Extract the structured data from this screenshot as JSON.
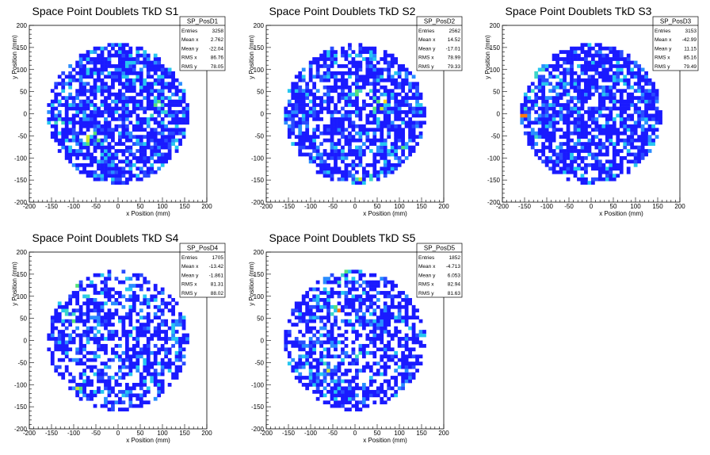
{
  "chart_data": [
    {
      "type": "heatmap",
      "title": "Space Point Doublets TkD S1",
      "xlabel": "x Position (mm)",
      "ylabel": "y Position (mm)",
      "xlim": [
        -200,
        200
      ],
      "ylim": [
        -200,
        200
      ],
      "xticks": [
        -200,
        -150,
        -100,
        -50,
        0,
        50,
        100,
        150,
        200
      ],
      "yticks": [
        -200,
        -150,
        -100,
        -50,
        0,
        50,
        100,
        150,
        200
      ],
      "stats": {
        "name": "SP_PosD1",
        "rows": [
          [
            "Entries",
            "3258"
          ],
          [
            "Mean x",
            "2.762"
          ],
          [
            "Mean y",
            "-22.04"
          ],
          [
            "RMS x",
            "86.76"
          ],
          [
            "RMS y",
            "78.05"
          ]
        ]
      },
      "seed": 11,
      "occupancy": 0.74,
      "hot": [
        [
          -140,
          -20
        ],
        [
          90,
          15
        ],
        [
          -60,
          -60
        ]
      ]
    },
    {
      "type": "heatmap",
      "title": "Space Point Doublets TkD S2",
      "xlabel": "x Position (mm)",
      "ylabel": "y Position (mm)",
      "xlim": [
        -200,
        200
      ],
      "ylim": [
        -200,
        200
      ],
      "xticks": [
        -200,
        -150,
        -100,
        -50,
        0,
        50,
        100,
        150,
        200
      ],
      "yticks": [
        -200,
        -150,
        -100,
        -50,
        0,
        50,
        100,
        150,
        200
      ],
      "stats": {
        "name": "SP_PosD2",
        "rows": [
          [
            "Entries",
            "2562"
          ],
          [
            "Mean x",
            "14.52"
          ],
          [
            "Mean y",
            "-17.01"
          ],
          [
            "RMS x",
            "78.99"
          ],
          [
            "RMS y",
            "79.33"
          ]
        ]
      },
      "seed": 23,
      "occupancy": 0.68,
      "hot": [
        [
          20,
          50
        ],
        [
          60,
          20
        ],
        [
          20,
          -150
        ],
        [
          120,
          -80
        ]
      ]
    },
    {
      "type": "heatmap",
      "title": "Space Point Doublets TkD S3",
      "xlabel": "x Position (mm)",
      "ylabel": "y Position (mm)",
      "xlim": [
        -200,
        200
      ],
      "ylim": [
        -200,
        200
      ],
      "xticks": [
        -200,
        -150,
        -100,
        -50,
        0,
        50,
        100,
        150,
        200
      ],
      "yticks": [
        -200,
        -150,
        -100,
        -50,
        0,
        50,
        100,
        150,
        200
      ],
      "stats": {
        "name": "SP_PosD3",
        "rows": [
          [
            "Entries",
            "3153"
          ],
          [
            "Mean x",
            "-42.99"
          ],
          [
            "Mean y",
            "11.15"
          ],
          [
            "RMS x",
            "85.16"
          ],
          [
            "RMS y",
            "79.49"
          ]
        ]
      },
      "seed": 37,
      "occupancy": 0.72,
      "hot": [
        [
          -150,
          0
        ],
        [
          -145,
          60
        ],
        [
          -140,
          -60
        ],
        [
          -130,
          100
        ],
        [
          -130,
          -100
        ]
      ]
    },
    {
      "type": "heatmap",
      "title": "Space Point Doublets TkD S4",
      "xlabel": "x Position (mm)",
      "ylabel": "y Position (mm)",
      "xlim": [
        -200,
        200
      ],
      "ylim": [
        -200,
        200
      ],
      "xticks": [
        -200,
        -150,
        -100,
        -50,
        0,
        50,
        100,
        150,
        200
      ],
      "yticks": [
        -200,
        -150,
        -100,
        -50,
        0,
        50,
        100,
        150,
        200
      ],
      "stats": {
        "name": "SP_PosD4",
        "rows": [
          [
            "Entries",
            "1705"
          ],
          [
            "Mean x",
            "-13.42"
          ],
          [
            "Mean y",
            "-1.861"
          ],
          [
            "RMS x",
            "81.31"
          ],
          [
            "RMS y",
            "88.02"
          ]
        ]
      },
      "seed": 41,
      "occupancy": 0.58,
      "hot": [
        [
          -90,
          -120
        ],
        [
          -100,
          60
        ],
        [
          -80,
          120
        ]
      ]
    },
    {
      "type": "heatmap",
      "title": "Space Point Doublets TkD S5",
      "xlabel": "x Position (mm)",
      "ylabel": "y Position (mm)",
      "xlim": [
        -200,
        200
      ],
      "ylim": [
        -200,
        200
      ],
      "xticks": [
        -200,
        -150,
        -100,
        -50,
        0,
        50,
        100,
        150,
        200
      ],
      "yticks": [
        -200,
        -150,
        -100,
        -50,
        0,
        50,
        100,
        150,
        200
      ],
      "stats": {
        "name": "SP_PosD5",
        "rows": [
          [
            "Entries",
            "1852"
          ],
          [
            "Mean x",
            "-4.713"
          ],
          [
            "Mean y",
            "6.053"
          ],
          [
            "RMS x",
            "82.94"
          ],
          [
            "RMS y",
            "81.63"
          ]
        ]
      },
      "seed": 53,
      "occupancy": 0.6,
      "hot": [
        [
          -40,
          70
        ],
        [
          20,
          -20
        ],
        [
          -60,
          -60
        ],
        [
          -30,
          140
        ]
      ]
    }
  ]
}
